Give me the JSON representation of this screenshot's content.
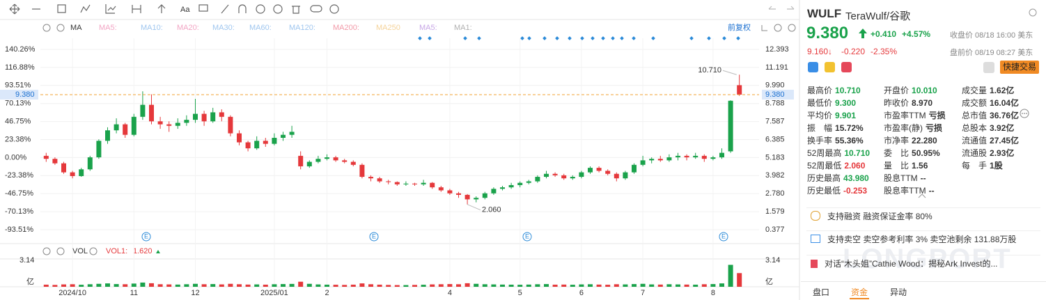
{
  "toolbar": {
    "text": "Aa"
  },
  "chart_data": {
    "type": "candlestick",
    "indicator_label": "MA",
    "ma_labels": [
      "MA5:",
      "MA10:",
      "MA20:",
      "MA30:",
      "MA60:",
      "MA120:",
      "MA200:",
      "MA250",
      "MA5:",
      "MA1:"
    ],
    "ma_colors": [
      "#f2a5c4",
      "#9fc6ef",
      "#f2a5c4",
      "#9fc6ef",
      "#9fc6ef",
      "#9fc6ef",
      "#f29aa8",
      "#f5d39a",
      "#c7a6e6",
      "#b0b0b0"
    ],
    "adjust_label": "前复权",
    "categories": [
      null,
      null,
      null,
      "2024/10",
      null,
      null,
      null,
      null,
      null,
      null,
      "11",
      null,
      null,
      null,
      null,
      null,
      null,
      "12",
      null,
      null,
      null,
      null,
      null,
      null,
      null,
      null,
      "2025/01",
      null,
      null,
      null,
      null,
      null,
      "2",
      null,
      null,
      null,
      null,
      null,
      null,
      null,
      null,
      null,
      null,
      null,
      null,
      null,
      "4",
      null,
      null,
      null,
      null,
      null,
      null,
      null,
      "5",
      null,
      null,
      null,
      null,
      null,
      null,
      "6",
      null,
      null,
      null,
      null,
      null,
      null,
      "7",
      null,
      null,
      null,
      null,
      null,
      null,
      null,
      "8",
      null,
      null,
      null
    ],
    "candles": [
      [
        5.3,
        5.5,
        4.9,
        5.1
      ],
      [
        5.1,
        5.2,
        4.7,
        4.8
      ],
      [
        4.8,
        4.9,
        4.1,
        4.2
      ],
      [
        4.2,
        4.3,
        3.8,
        3.95
      ],
      [
        3.95,
        4.5,
        3.9,
        4.4
      ],
      [
        4.4,
        5.3,
        4.3,
        5.2
      ],
      [
        5.2,
        6.4,
        5.1,
        6.3
      ],
      [
        6.3,
        7.2,
        6.1,
        7.0
      ],
      [
        7.0,
        7.8,
        6.8,
        7.4
      ],
      [
        7.4,
        7.5,
        6.5,
        6.7
      ],
      [
        6.7,
        8.1,
        6.6,
        7.9
      ],
      [
        7.9,
        9.6,
        7.7,
        8.7
      ],
      [
        8.7,
        9.4,
        7.4,
        7.6
      ],
      [
        7.6,
        7.9,
        7.1,
        7.4
      ],
      [
        7.4,
        7.6,
        6.9,
        7.3
      ],
      [
        7.3,
        7.8,
        7.1,
        7.5
      ],
      [
        7.5,
        8.0,
        7.3,
        7.7
      ],
      [
        7.7,
        9.1,
        7.5,
        8.1
      ],
      [
        8.1,
        8.3,
        7.3,
        7.6
      ],
      [
        7.6,
        8.5,
        7.5,
        8.2
      ],
      [
        8.2,
        8.4,
        7.6,
        7.9
      ],
      [
        7.9,
        8.0,
        6.6,
        6.8
      ],
      [
        6.8,
        7.0,
        6.0,
        6.2
      ],
      [
        6.2,
        6.3,
        5.6,
        5.8
      ],
      [
        5.8,
        6.6,
        5.7,
        6.3
      ],
      [
        6.3,
        6.5,
        5.9,
        6.1
      ],
      [
        6.1,
        6.8,
        6.0,
        6.5
      ],
      [
        6.5,
        6.9,
        6.3,
        6.7
      ],
      [
        6.7,
        7.3,
        6.5,
        6.9
      ],
      [
        5.3,
        5.6,
        4.4,
        4.6
      ],
      [
        4.6,
        5.0,
        4.5,
        4.9
      ],
      [
        4.9,
        5.3,
        4.8,
        5.1
      ],
      [
        5.1,
        5.4,
        5.0,
        5.2
      ],
      [
        5.2,
        5.3,
        4.9,
        5.0
      ],
      [
        5.0,
        5.1,
        4.8,
        4.9
      ],
      [
        4.9,
        5.0,
        4.6,
        4.7
      ],
      [
        4.7,
        4.8,
        3.8,
        3.9
      ],
      [
        3.9,
        4.0,
        3.6,
        3.8
      ],
      [
        3.8,
        3.9,
        3.5,
        3.6
      ],
      [
        3.6,
        3.7,
        3.4,
        3.55
      ],
      [
        3.55,
        3.6,
        3.3,
        3.4
      ],
      [
        3.4,
        3.6,
        3.3,
        3.45
      ],
      [
        3.45,
        3.5,
        3.3,
        3.4
      ],
      [
        3.4,
        3.7,
        3.3,
        3.5
      ],
      [
        3.5,
        3.55,
        3.1,
        3.2
      ],
      [
        3.2,
        3.3,
        2.9,
        3.0
      ],
      [
        3.0,
        3.1,
        2.7,
        2.8
      ],
      [
        2.8,
        2.9,
        2.5,
        2.7
      ],
      [
        2.7,
        2.75,
        2.06,
        2.4
      ],
      [
        2.4,
        2.6,
        2.2,
        2.5
      ],
      [
        2.5,
        2.9,
        2.4,
        2.8
      ],
      [
        2.8,
        3.2,
        2.7,
        3.1
      ],
      [
        3.1,
        3.3,
        3.0,
        3.2
      ],
      [
        3.2,
        3.5,
        3.1,
        3.35
      ],
      [
        3.35,
        3.6,
        3.2,
        3.5
      ],
      [
        3.5,
        3.7,
        3.4,
        3.6
      ],
      [
        3.6,
        4.0,
        3.5,
        3.9
      ],
      [
        3.9,
        4.3,
        3.8,
        4.1
      ],
      [
        4.1,
        4.2,
        3.9,
        4.0
      ],
      [
        4.0,
        4.1,
        3.7,
        3.8
      ],
      [
        3.8,
        4.0,
        3.7,
        3.9
      ],
      [
        3.9,
        4.3,
        3.8,
        4.2
      ],
      [
        4.2,
        4.6,
        4.1,
        4.5
      ],
      [
        4.5,
        4.6,
        4.2,
        4.3
      ],
      [
        4.3,
        4.4,
        4.0,
        4.1
      ],
      [
        4.1,
        4.2,
        3.6,
        3.8
      ],
      [
        3.8,
        4.3,
        3.7,
        4.2
      ],
      [
        4.2,
        4.8,
        4.1,
        4.7
      ],
      [
        4.7,
        5.3,
        4.6,
        5.0
      ],
      [
        5.0,
        5.2,
        4.8,
        5.1
      ],
      [
        5.1,
        5.3,
        4.9,
        5.0
      ],
      [
        5.0,
        5.4,
        4.9,
        5.2
      ],
      [
        5.2,
        5.5,
        5.0,
        5.3
      ],
      [
        5.3,
        5.4,
        5.0,
        5.2
      ],
      [
        5.2,
        5.5,
        5.1,
        5.3
      ],
      [
        5.3,
        5.4,
        4.9,
        5.1
      ],
      [
        5.1,
        5.3,
        5.0,
        5.2
      ],
      [
        5.2,
        5.8,
        5.1,
        5.5
      ],
      [
        5.6,
        9.0,
        5.5,
        8.97
      ],
      [
        10.01,
        10.71,
        9.3,
        9.38
      ]
    ],
    "ylim": [
      -0.319,
      13.135
    ],
    "yticks": [
      12.393,
      11.191,
      {
        "value": 9.99,
        "label": "9.990"
      },
      8.788,
      7.587,
      6.385,
      5.183,
      3.982,
      {
        "value": 2.78,
        "label": "2.780"
      },
      1.579,
      0.377
    ],
    "y2lim": [
      -107.0,
      154.7
    ],
    "y2ticks": [
      {
        "value": 140.26,
        "label": "140.26%"
      },
      {
        "value": 116.88,
        "label": "116.88%"
      },
      {
        "value": 93.51,
        "label": "93.51%"
      },
      {
        "value": 70.13,
        "label": "70.13%"
      },
      {
        "value": 46.75,
        "label": "46.75%"
      },
      {
        "value": 23.38,
        "label": "23.38%"
      },
      {
        "value": 0,
        "label": "0.00%"
      },
      {
        "value": -23.38,
        "label": "-23.38%"
      },
      {
        "value": -46.75,
        "label": "-46.75%"
      },
      {
        "value": -70.13,
        "label": "-70.13%"
      },
      {
        "value": -93.51,
        "label": "-93.51%"
      }
    ],
    "grid": true,
    "up_color": "#1aa24b",
    "down_color": "#e5383b",
    "price_line": 9.38,
    "price_line_label": "9.380",
    "price_line_color": "#f0a030",
    "high_label": "10.710",
    "low_label": "2.060",
    "earnings": [
      "E",
      "E",
      "E",
      "E"
    ],
    "volume": {
      "label": "VOL",
      "series_label": "VOL1:",
      "value_label": "1.620",
      "values": [
        0.25,
        0.22,
        0.28,
        0.3,
        0.24,
        0.3,
        0.35,
        0.4,
        0.32,
        0.3,
        0.38,
        0.5,
        0.42,
        0.3,
        0.28,
        0.26,
        0.3,
        0.35,
        0.3,
        0.32,
        0.28,
        0.35,
        0.3,
        0.26,
        0.28,
        0.25,
        0.3,
        0.32,
        0.34,
        0.6,
        0.35,
        0.28,
        0.25,
        0.24,
        0.22,
        0.25,
        0.4,
        0.3,
        0.25,
        0.22,
        0.2,
        0.2,
        0.22,
        0.24,
        0.28,
        0.3,
        0.32,
        0.3,
        0.42,
        0.35,
        0.3,
        0.28,
        0.26,
        0.25,
        0.24,
        0.26,
        0.3,
        0.32,
        0.25,
        0.26,
        0.24,
        0.28,
        0.3,
        0.26,
        0.24,
        0.3,
        0.28,
        0.32,
        0.35,
        0.28,
        0.26,
        0.3,
        0.28,
        0.26,
        0.25,
        0.3,
        0.32,
        0.4,
        2.6,
        1.62
      ],
      "ylim": [
        0,
        3.3
      ],
      "yticks": [
        3.14
      ],
      "unit": "亿"
    }
  },
  "quote": {
    "symbol": "WULF",
    "name": "TeraWulf/谷歌",
    "price": "9.380",
    "change": "+0.410",
    "change_pct": "+4.57%",
    "close_note": "收盘价 08/18 16:00 美东",
    "pre_price": "9.160↓",
    "pre_change": "-0.220",
    "pre_change_pct": "-2.35%",
    "pre_note": "盘前价 08/19 08:27 美东",
    "trade_button": "快捷交易",
    "stats": [
      [
        {
          "label": "最高价",
          "value": "10.710",
          "tone": "up"
        },
        {
          "label": "最低价",
          "value": "9.300",
          "tone": "up"
        },
        {
          "label": "平均价",
          "value": "9.901",
          "tone": "up"
        },
        {
          "label": "振　幅",
          "value": "15.72%"
        },
        {
          "label": "换手率",
          "value": "55.36%"
        },
        {
          "label": "52周最高",
          "value": "10.710",
          "tone": "up"
        },
        {
          "label": "52周最低",
          "value": "2.060",
          "tone": "down"
        },
        {
          "label": "历史最高",
          "value": "43.980",
          "tone": "up"
        },
        {
          "label": "历史最低",
          "value": "-0.253",
          "tone": "down"
        }
      ],
      [
        {
          "label": "开盘价",
          "value": "10.010",
          "tone": "up"
        },
        {
          "label": "昨收价",
          "value": "8.970"
        },
        {
          "label": "市盈率TTM",
          "value": "亏损"
        },
        {
          "label": "市盈率(静)",
          "value": "亏损"
        },
        {
          "label": "市净率",
          "value": "22.280"
        },
        {
          "label": "委　比",
          "value": "50.95%"
        },
        {
          "label": "量　比",
          "value": "1.56"
        },
        {
          "label": "股息TTM",
          "value": "--"
        },
        {
          "label": "股息率TTM",
          "value": "--"
        }
      ],
      [
        {
          "label": "成交量",
          "value": "1.62亿"
        },
        {
          "label": "成交额",
          "value": "16.04亿"
        },
        {
          "label": "总市值",
          "value": "36.76亿"
        },
        {
          "label": "总股本",
          "value": "3.92亿"
        },
        {
          "label": "流通值",
          "value": "27.45亿"
        },
        {
          "label": "流通股",
          "value": "2.93亿"
        },
        {
          "label": "每　手",
          "value": "1股"
        }
      ]
    ],
    "banners": [
      {
        "tag": "支持融资",
        "text": "融资保证金率 80%"
      },
      {
        "tag": "支持卖空",
        "text": "卖空参考利率 3%  卖空池剩余 131.88万股"
      },
      {
        "text": "对话“木头姐”Cathie Wood：揭秘Ark Invest的..."
      }
    ],
    "tabs": [
      "盘口",
      "资金",
      "异动"
    ],
    "watermark": "LONGPORT"
  }
}
